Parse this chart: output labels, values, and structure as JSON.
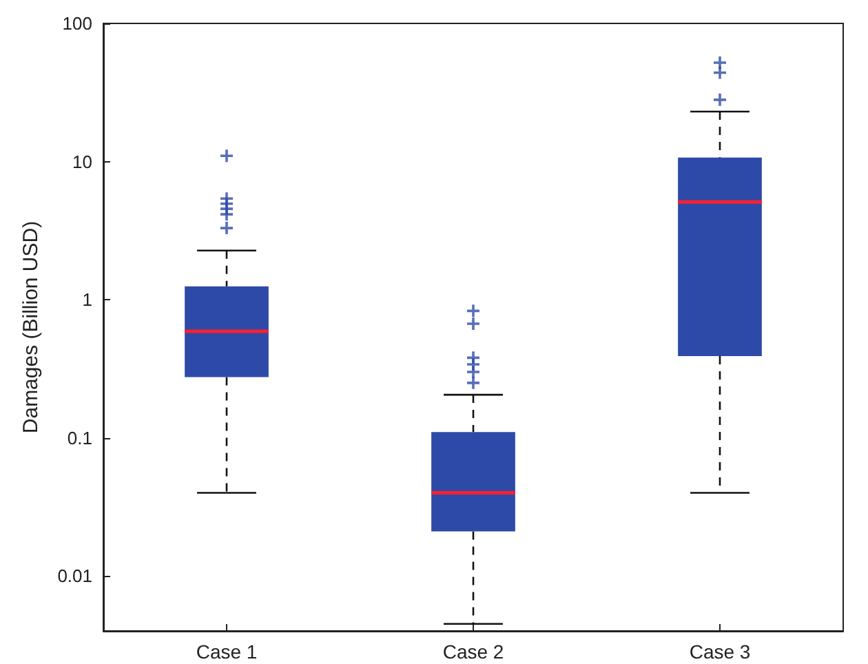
{
  "chart_data": {
    "type": "box",
    "ylabel": "Damages (Billion USD)",
    "categories": [
      "Case 1",
      "Case 2",
      "Case 3"
    ],
    "series": [
      {
        "color": "#2e4aa8",
        "boxes": [
          {
            "low": 0.04,
            "q1": 0.275,
            "median": 0.59,
            "q3": 1.25,
            "high": 2.27,
            "outliers": [
              3.3,
              4.15,
              4.55,
              4.95,
              5.4,
              11
            ]
          },
          {
            "low": 0.0045,
            "q1": 0.021,
            "median": 0.04,
            "q3": 0.11,
            "high": 0.205,
            "outliers": [
              0.25,
              0.3,
              0.34,
              0.38,
              0.67,
              0.83
            ]
          },
          {
            "low": 0.04,
            "q1": 0.39,
            "median": 5.1,
            "q3": 10.7,
            "high": 23,
            "outliers": [
              28,
              44,
              52
            ]
          }
        ]
      }
    ],
    "log": "y",
    "ylim": [
      0.004,
      100
    ],
    "yticks": [
      0.01,
      0.1,
      1,
      10,
      100
    ],
    "grid": false,
    "marker": "cross"
  }
}
